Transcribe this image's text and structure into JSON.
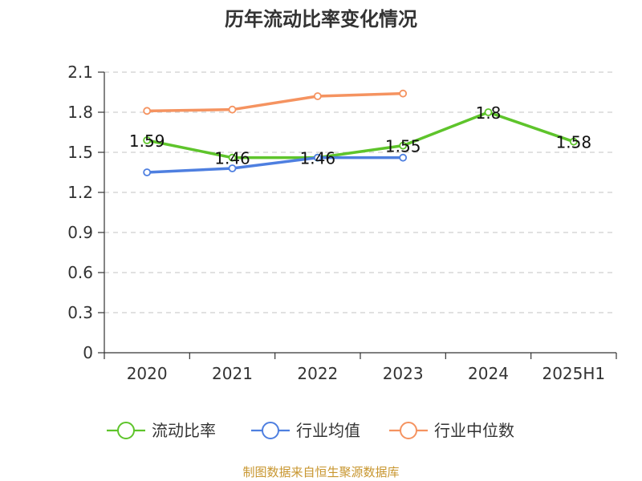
{
  "source": "制图数据来自恒生聚源数据库",
  "chart_data": {
    "type": "line",
    "title": "历年流动比率变化情况",
    "xlabel": "",
    "ylabel": "",
    "categories": [
      "2020",
      "2021",
      "2022",
      "2023",
      "2024",
      "2025H1"
    ],
    "ylim": [
      0,
      2.1
    ],
    "yticks": [
      "0",
      "0.3",
      "0.6",
      "0.9",
      "1.2",
      "1.5",
      "1.8",
      "2.1"
    ],
    "grid": true,
    "legend_position": "bottom",
    "series": [
      {
        "name": "流动比率",
        "color": "#5ec42b",
        "values": [
          1.59,
          1.46,
          1.46,
          1.55,
          1.8,
          1.58
        ],
        "labels": [
          "1.59",
          "1.46",
          "1.46",
          "1.55",
          "1.8",
          "1.58"
        ]
      },
      {
        "name": "行业均值",
        "color": "#4e7fe0",
        "values": [
          1.35,
          1.38,
          1.46,
          1.46,
          null,
          null
        ],
        "labels": []
      },
      {
        "name": "行业中位数",
        "color": "#f59360",
        "values": [
          1.81,
          1.82,
          1.92,
          1.94,
          null,
          null
        ],
        "labels": []
      }
    ]
  }
}
